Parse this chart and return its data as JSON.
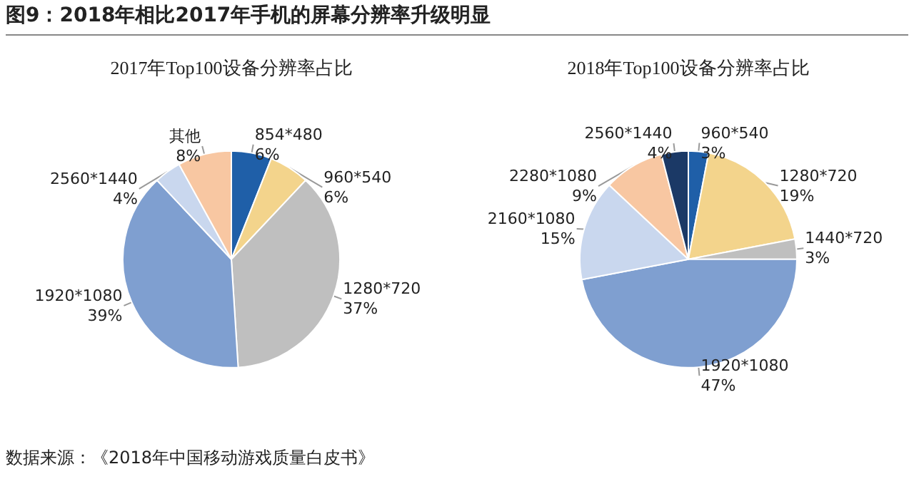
{
  "chart_data": [
    {
      "type": "other",
      "title": "图9：2018年相比2017年手机的屏幕分辨率升级明显",
      "annotations": [
        "数据来源：《2018年中国移动游戏质量白皮书》"
      ]
    },
    {
      "type": "pie",
      "title": "2017年Top100设备分辨率占比",
      "categories": [
        "854*480",
        "960*540",
        "1280*720",
        "1920*1080",
        "2560*1440",
        "其他"
      ],
      "values": [
        6,
        6,
        37,
        39,
        4,
        8
      ],
      "value_labels": [
        "6%",
        "6%",
        "37%",
        "39%",
        "4%",
        "8%"
      ],
      "colors": [
        "#1f5fa8",
        "#f3d48c",
        "#bfbfbf",
        "#7f9fd0",
        "#c9d7ee",
        "#f8c7a2"
      ],
      "data_labels": true,
      "legend": false
    },
    {
      "type": "pie",
      "title": "2018年Top100设备分辨率占比",
      "categories": [
        "960*540",
        "1280*720",
        "1440*720",
        "1920*1080",
        "2160*1080",
        "2280*1080",
        "2560*1440"
      ],
      "values": [
        3,
        19,
        3,
        47,
        15,
        9,
        4
      ],
      "value_labels": [
        "3%",
        "19%",
        "3%",
        "47%",
        "15%",
        "9%",
        "4%"
      ],
      "colors": [
        "#1f5fa8",
        "#f3d48c",
        "#bfbfbf",
        "#7f9fd0",
        "#c9d7ee",
        "#f8c7a2",
        "#1b3966"
      ],
      "data_labels": true,
      "legend": false
    }
  ]
}
